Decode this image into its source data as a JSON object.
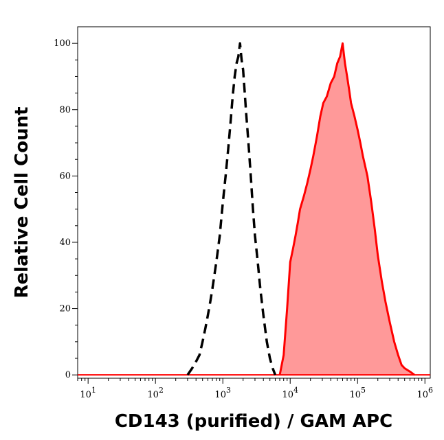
{
  "chart_data": {
    "type": "area",
    "title": "",
    "xlabel": "CD143 (purified) / GAM APC",
    "ylabel": "Relative Cell Count",
    "x_scale": "log",
    "xlim": [
      7,
      1200000
    ],
    "ylim": [
      -1,
      105
    ],
    "grid": false,
    "legend": "none",
    "x_ticks": [
      {
        "base": "10",
        "exp": "1",
        "value": 10
      },
      {
        "base": "10",
        "exp": "2",
        "value": 100
      },
      {
        "base": "10",
        "exp": "3",
        "value": 1000
      },
      {
        "base": "10",
        "exp": "4",
        "value": 10000
      },
      {
        "base": "10",
        "exp": "5",
        "value": 100000
      },
      {
        "base": "10",
        "exp": "6",
        "value": 1000000
      }
    ],
    "y_ticks": [
      {
        "label": "0",
        "value": 0
      },
      {
        "label": "20",
        "value": 20
      },
      {
        "label": "40",
        "value": 40
      },
      {
        "label": "60",
        "value": 60
      },
      {
        "label": "80",
        "value": 80
      },
      {
        "label": "100",
        "value": 100
      }
    ],
    "series": [
      {
        "style": "dashed-outline",
        "color": "#000000",
        "x": [
          300,
          350,
          400,
          450,
          500,
          550,
          600,
          650,
          700,
          800,
          900,
          1000,
          1100,
          1200,
          1300,
          1400,
          1500,
          1600,
          1700,
          1800,
          1900,
          2000,
          2100,
          2200,
          2400,
          2600,
          2800,
          3000,
          3300,
          3600,
          4000,
          4500,
          5000,
          5500,
          6000
        ],
        "y": [
          0,
          2,
          4,
          6,
          10,
          14,
          18,
          22,
          26,
          34,
          42,
          52,
          60,
          68,
          76,
          84,
          90,
          94,
          96,
          100,
          95,
          92,
          86,
          80,
          70,
          60,
          50,
          42,
          34,
          26,
          18,
          10,
          5,
          2,
          0
        ]
      },
      {
        "style": "filled",
        "color": "#ff0000",
        "fill": "#ff9999",
        "x": [
          7000,
          8000,
          9000,
          10000,
          11000,
          12000,
          13000,
          14000,
          16000,
          18000,
          20000,
          22000,
          25000,
          28000,
          31000,
          35000,
          40000,
          45000,
          50000,
          55000,
          60000,
          65000,
          70000,
          75000,
          80000,
          90000,
          100000,
          110000,
          120000,
          140000,
          160000,
          180000,
          200000,
          230000,
          260000,
          300000,
          350000,
          400000,
          450000,
          500000,
          600000,
          700000
        ],
        "y": [
          0,
          6,
          20,
          34,
          38,
          42,
          46,
          50,
          54,
          58,
          62,
          66,
          72,
          78,
          82,
          84,
          88,
          90,
          94,
          96,
          100,
          94,
          90,
          86,
          82,
          78,
          74,
          70,
          66,
          60,
          52,
          44,
          36,
          28,
          22,
          16,
          10,
          6,
          3,
          2,
          1,
          0
        ]
      }
    ]
  }
}
